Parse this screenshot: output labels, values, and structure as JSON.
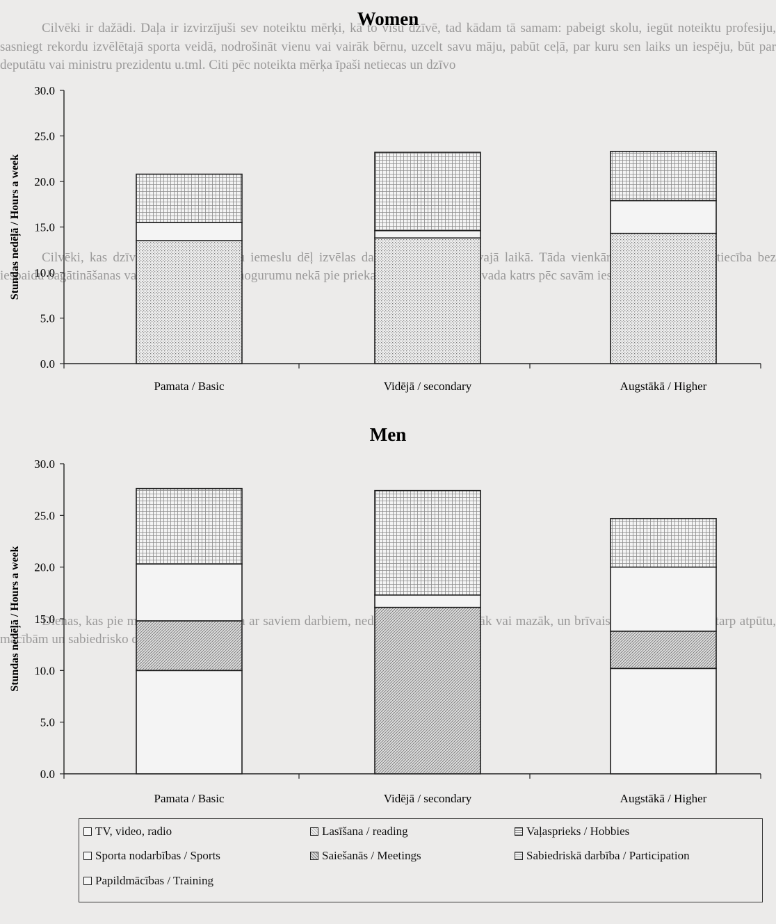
{
  "background_text": [
    "Cilvēki ir dažādi. Daļa ir izvirzījuši sev noteiktu mērķi, kā to visu dzīvē, tad kādam tā samam: pabeigt skolu, iegūt noteiktu profesiju, sasniegt rekordu izvēlētajā sporta veidā, nodrošināt vienu vai vairāk bērnu, uzcelt savu māju, pabūt ceļā, par kuru sen laiks un iespēju, būt par deputātu vai ministru prezidentu u.tml. Citi pēc noteikta mērķa īpaši netiecas un dzīvo",
    "Cilvēki, kas dzīvo un strādā, dažādu iemeslu dēļ izvēlas dažādas nodarbes brīvajā laikā. Tāda vienkāršoti iedomāta mērķtiecība bez iespaidu bagātināšanas var drīzāk novest pie nogurumu nekā pie prieka, taču brīvo laiku pavada katrs pēc savām iespējām un vēlmēm.",
    "Dienas, kas pie mums, cilvēks pavada ar saviem darbiem, nedēļās un stundās vairāk vai mazāk, un brīvais laiks tiek sadalīts starp atpūtu, mācībām un sabiedrisko darbu."
  ],
  "legend": [
    {
      "label": "TV, video, radio",
      "pattern": "plain"
    },
    {
      "label": "Lasīšana / reading",
      "pattern": "dots"
    },
    {
      "label": "Vaļasprieks / Hobbies",
      "pattern": "grid"
    },
    {
      "label": "Sporta nodarbības / Sports",
      "pattern": "plain"
    },
    {
      "label": "Saiešanās / Meetings",
      "pattern": "hatch"
    },
    {
      "label": "Sabiedriskā darbība / Participation",
      "pattern": "grid"
    },
    {
      "label": "Papildmācības / Training",
      "pattern": "plain"
    }
  ],
  "chart_data": [
    {
      "type": "bar",
      "stacked": true,
      "title": "Women",
      "xlabel": "",
      "ylabel": "Stundas nedēļā / Hours a week",
      "ylim": [
        0,
        30
      ],
      "yticks": [
        "0.0",
        "5.0",
        "10.0",
        "15.0",
        "20.0",
        "25.0",
        "30.0"
      ],
      "categories": [
        "Pamata / Basic",
        "Vidējā / secondary",
        "Augstākā / Higher"
      ],
      "segments": [
        {
          "pattern": "dots",
          "values": [
            13.5,
            13.8,
            14.3
          ]
        },
        {
          "pattern": "plain",
          "values": [
            2.0,
            0.8,
            3.6
          ]
        },
        {
          "pattern": "grid",
          "values": [
            5.3,
            8.6,
            5.4
          ]
        }
      ],
      "totals": [
        20.8,
        23.2,
        23.3
      ]
    },
    {
      "type": "bar",
      "stacked": true,
      "title": "Men",
      "xlabel": "",
      "ylabel": "Stundas nedēļā / Hours a week",
      "ylim": [
        0,
        30
      ],
      "yticks": [
        "0.0",
        "5.0",
        "10.0",
        "15.0",
        "20.0",
        "25.0",
        "30.0"
      ],
      "categories": [
        "Pamata / Basic",
        "Vidējā / secondary",
        "Augstākā / Higher"
      ],
      "segments": [
        {
          "pattern": "plain",
          "values": [
            10.0,
            0,
            10.2
          ]
        },
        {
          "pattern": "hatch",
          "values": [
            4.8,
            16.1,
            3.6
          ]
        },
        {
          "pattern": "plain",
          "values": [
            5.5,
            1.2,
            6.2
          ]
        },
        {
          "pattern": "grid",
          "values": [
            7.3,
            10.1,
            4.7
          ]
        }
      ],
      "totals": [
        27.6,
        27.4,
        24.7
      ]
    }
  ]
}
